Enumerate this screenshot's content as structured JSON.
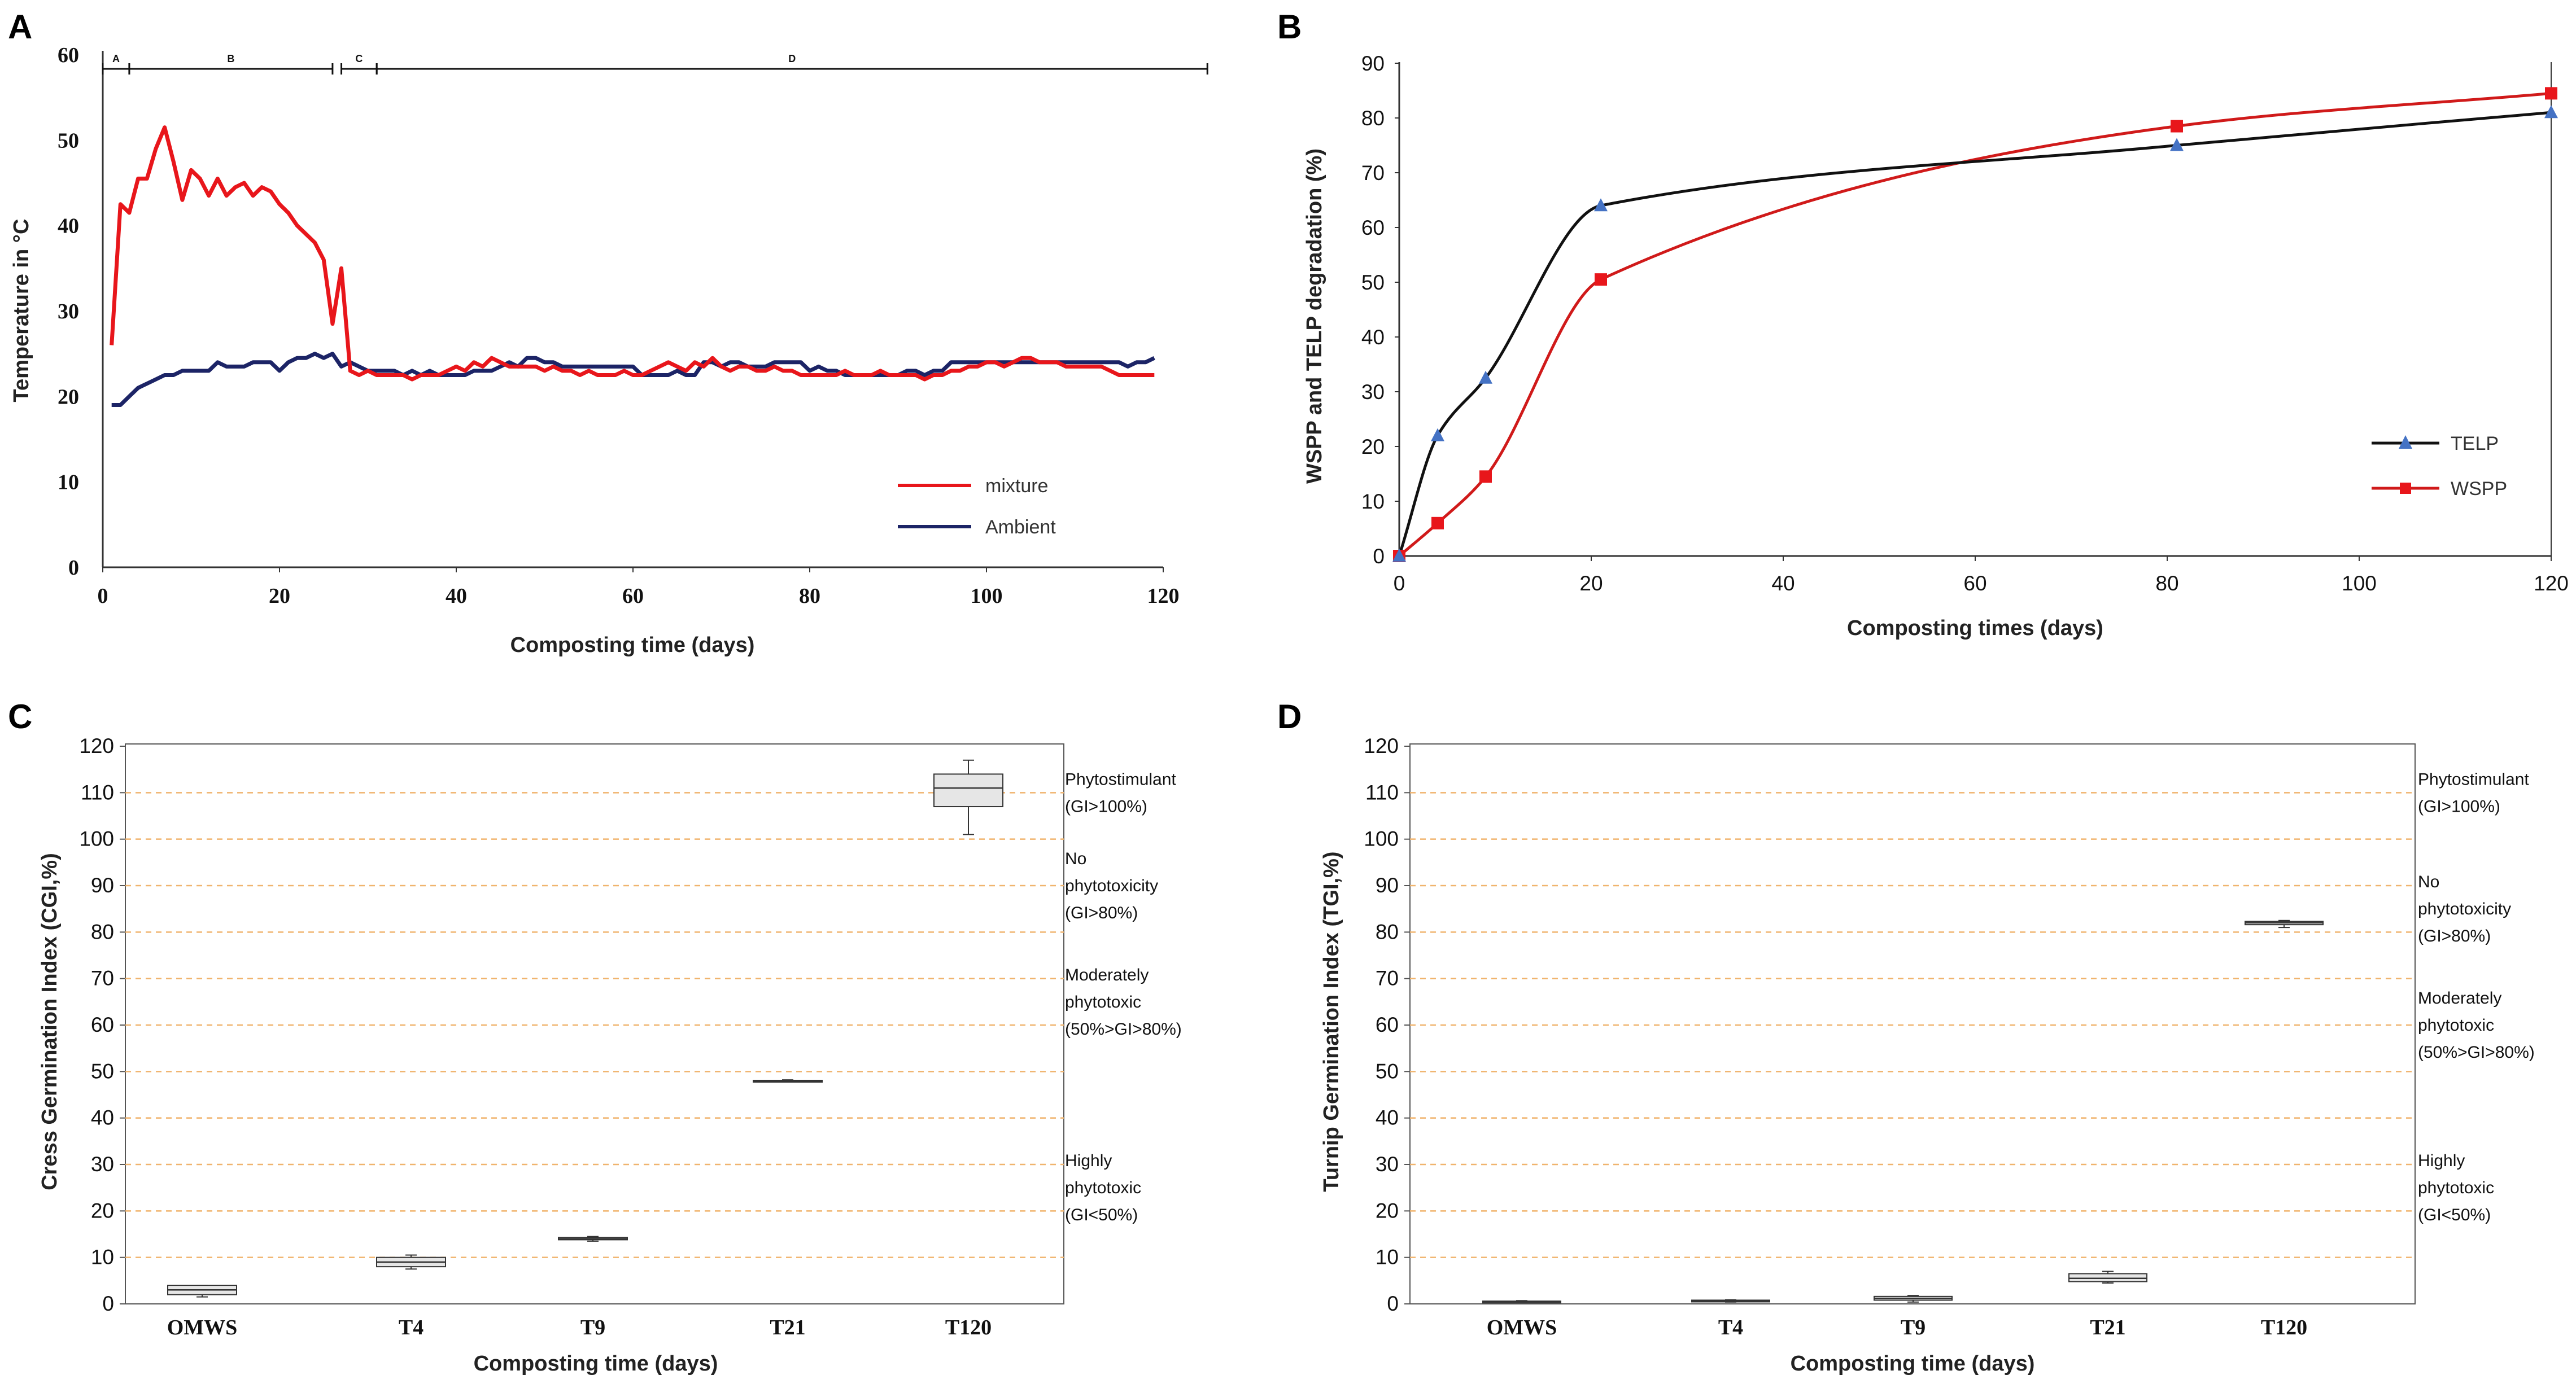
{
  "panels": {
    "A": "A",
    "B": "B",
    "C": "C",
    "D": "D"
  },
  "colors": {
    "mixture": "#e8161b",
    "ambient": "#1c2466",
    "telp": "#111111",
    "wspp": "#d01a1a",
    "telp_marker": "#4472c4",
    "grid": "#f0b46e",
    "box_fill": "#e6e6e6"
  },
  "chart_data": [
    {
      "id": "A",
      "type": "line",
      "xlabel": "Composting time (days)",
      "ylabel": "Temperature in °C",
      "xlim": [
        0,
        120
      ],
      "ylim": [
        0,
        60
      ],
      "xticks": [
        0,
        20,
        40,
        60,
        80,
        100,
        120
      ],
      "yticks": [
        0,
        10,
        20,
        30,
        40,
        50,
        60
      ],
      "phases": [
        {
          "label": "A",
          "start": 0,
          "end": 3
        },
        {
          "label": "B",
          "start": 3,
          "end": 26
        },
        {
          "label": "C",
          "start": 27,
          "end": 31
        },
        {
          "label": "D",
          "start": 31,
          "end": 125
        }
      ],
      "series": [
        {
          "name": "mixture",
          "color": "#e8161b",
          "x": [
            1,
            2,
            3,
            4,
            5,
            6,
            7,
            8,
            9,
            10,
            11,
            12,
            13,
            14,
            15,
            16,
            17,
            18,
            19,
            20,
            21,
            22,
            23,
            24,
            25,
            26,
            27,
            28,
            29,
            30,
            31,
            32,
            33,
            34,
            35,
            36,
            37,
            38,
            39,
            40,
            41,
            42,
            43,
            44,
            45,
            46,
            47,
            48,
            49,
            50,
            51,
            52,
            53,
            54,
            55,
            56,
            57,
            58,
            59,
            60,
            61,
            62,
            63,
            64,
            65,
            66,
            67,
            68,
            69,
            70,
            71,
            72,
            73,
            74,
            75,
            76,
            77,
            78,
            79,
            80,
            81,
            82,
            83,
            84,
            85,
            86,
            87,
            88,
            89,
            90,
            91,
            92,
            93,
            94,
            95,
            96,
            97,
            98,
            99,
            100,
            101,
            102,
            103,
            104,
            105,
            106,
            107,
            108,
            109,
            110,
            111,
            112,
            113,
            114,
            115,
            116,
            117,
            118,
            119
          ],
          "y": [
            26.0,
            42.5,
            41.5,
            45.5,
            45.5,
            49.0,
            51.5,
            47.5,
            43.0,
            46.5,
            45.5,
            43.5,
            45.5,
            43.5,
            44.5,
            45.0,
            43.5,
            44.5,
            44.0,
            42.5,
            41.5,
            40.0,
            39.0,
            38.0,
            36.0,
            28.5,
            35.0,
            23.0,
            22.5,
            23.0,
            22.5,
            22.5,
            22.5,
            22.5,
            22.0,
            22.5,
            22.5,
            22.5,
            23.0,
            23.5,
            23.0,
            24.0,
            23.5,
            24.5,
            24.0,
            23.5,
            23.5,
            23.5,
            23.5,
            23.0,
            23.5,
            23.0,
            23.0,
            22.5,
            23.0,
            22.5,
            22.5,
            22.5,
            23.0,
            22.5,
            22.5,
            23.0,
            23.5,
            24.0,
            23.5,
            23.0,
            24.0,
            23.5,
            24.5,
            23.5,
            23.0,
            23.5,
            23.5,
            23.0,
            23.0,
            23.5,
            23.0,
            23.0,
            22.5,
            22.5,
            22.5,
            22.5,
            22.5,
            23.0,
            22.5,
            22.5,
            22.5,
            23.0,
            22.5,
            22.5,
            22.5,
            22.5,
            22.0,
            22.5,
            22.5,
            23.0,
            23.0,
            23.5,
            23.5,
            24.0,
            24.0,
            23.5,
            24.0,
            24.5,
            24.5,
            24.0,
            24.0,
            24.0,
            23.5,
            23.5,
            23.5,
            23.5,
            23.5,
            23.0,
            22.5,
            22.5,
            22.5,
            22.5,
            22.5
          ]
        },
        {
          "name": "Ambient",
          "color": "#1c2466",
          "x": [
            1,
            2,
            3,
            4,
            5,
            6,
            7,
            8,
            9,
            10,
            11,
            12,
            13,
            14,
            15,
            16,
            17,
            18,
            19,
            20,
            21,
            22,
            23,
            24,
            25,
            26,
            27,
            28,
            29,
            30,
            31,
            32,
            33,
            34,
            35,
            36,
            37,
            38,
            39,
            40,
            41,
            42,
            43,
            44,
            45,
            46,
            47,
            48,
            49,
            50,
            51,
            52,
            53,
            54,
            55,
            56,
            57,
            58,
            59,
            60,
            61,
            62,
            63,
            64,
            65,
            66,
            67,
            68,
            69,
            70,
            71,
            72,
            73,
            74,
            75,
            76,
            77,
            78,
            79,
            80,
            81,
            82,
            83,
            84,
            85,
            86,
            87,
            88,
            89,
            90,
            91,
            92,
            93,
            94,
            95,
            96,
            97,
            98,
            99,
            100,
            101,
            102,
            103,
            104,
            105,
            106,
            107,
            108,
            109,
            110,
            111,
            112,
            113,
            114,
            115,
            116,
            117,
            118,
            119
          ],
          "y": [
            19.0,
            19.0,
            20.0,
            21.0,
            21.5,
            22.0,
            22.5,
            22.5,
            23.0,
            23.0,
            23.0,
            23.0,
            24.0,
            23.5,
            23.5,
            23.5,
            24.0,
            24.0,
            24.0,
            23.0,
            24.0,
            24.5,
            24.5,
            25.0,
            24.5,
            25.0,
            23.5,
            24.0,
            23.5,
            23.0,
            23.0,
            23.0,
            23.0,
            22.5,
            23.0,
            22.5,
            23.0,
            22.5,
            22.5,
            22.5,
            22.5,
            23.0,
            23.0,
            23.0,
            23.5,
            24.0,
            23.5,
            24.5,
            24.5,
            24.0,
            24.0,
            23.5,
            23.5,
            23.5,
            23.5,
            23.5,
            23.5,
            23.5,
            23.5,
            23.5,
            22.5,
            22.5,
            22.5,
            22.5,
            23.0,
            22.5,
            22.5,
            24.0,
            24.0,
            23.5,
            24.0,
            24.0,
            23.5,
            23.5,
            23.5,
            24.0,
            24.0,
            24.0,
            24.0,
            23.0,
            23.5,
            23.0,
            23.0,
            22.5,
            22.5,
            22.5,
            22.5,
            22.5,
            22.5,
            22.5,
            23.0,
            23.0,
            22.5,
            23.0,
            23.0,
            24.0,
            24.0,
            24.0,
            24.0,
            24.0,
            24.0,
            24.0,
            24.0,
            24.0,
            24.0,
            24.0,
            24.0,
            24.0,
            24.0,
            24.0,
            24.0,
            24.0,
            24.0,
            24.0,
            24.0,
            23.5,
            24.0,
            24.0,
            24.5
          ]
        }
      ],
      "legend": [
        "mixture",
        "Ambient"
      ]
    },
    {
      "id": "B",
      "type": "line",
      "xlabel": "Composting times (days)",
      "ylabel": "WSPP and TELP degradation (%)",
      "xlim": [
        0,
        120
      ],
      "ylim": [
        0,
        90
      ],
      "xticks": [
        0,
        20,
        40,
        60,
        80,
        100,
        120
      ],
      "yticks": [
        0,
        10,
        20,
        30,
        40,
        50,
        60,
        70,
        80,
        90
      ],
      "series": [
        {
          "name": "TELP",
          "color": "#111111",
          "marker": "triangle",
          "marker_color": "#4472c4",
          "x": [
            0,
            4,
            9,
            21,
            81,
            120
          ],
          "y": [
            0,
            22,
            32.5,
            64,
            75,
            81
          ]
        },
        {
          "name": "WSPP",
          "color": "#d01a1a",
          "marker": "square",
          "marker_color": "#e8161b",
          "x": [
            0,
            4,
            9,
            21,
            81,
            120
          ],
          "y": [
            0,
            6,
            14.5,
            50.5,
            78.5,
            84.5
          ]
        }
      ],
      "legend": [
        "TELP",
        "WSPP"
      ]
    },
    {
      "id": "C",
      "type": "box",
      "xlabel": "Composting time (days)",
      "ylabel": "Cress Germination Index (CGI,%)",
      "ylim": [
        0,
        120
      ],
      "yticks": [
        0,
        10,
        20,
        30,
        40,
        50,
        60,
        70,
        80,
        90,
        100,
        110,
        120
      ],
      "categories": [
        "OMWS",
        "T4",
        "T9",
        "T21",
        "T120"
      ],
      "boxes": [
        {
          "label": "OMWS",
          "min": 1.5,
          "q1": 2.0,
          "median": 3.0,
          "q3": 4.0,
          "max": 4.0
        },
        {
          "label": "T4",
          "min": 7.5,
          "q1": 8.0,
          "median": 9.0,
          "q3": 10.0,
          "max": 10.5
        },
        {
          "label": "T9",
          "min": 13.5,
          "q1": 13.8,
          "median": 14.0,
          "q3": 14.3,
          "max": 14.5
        },
        {
          "label": "T21",
          "min": 47.8,
          "q1": 47.9,
          "median": 48.0,
          "q3": 48.1,
          "max": 48.2
        },
        {
          "label": "T120",
          "min": 101.0,
          "q1": 107.0,
          "median": 111.0,
          "q3": 114.0,
          "max": 117.0
        }
      ],
      "annotations": [
        {
          "lines": [
            "Phytostimulant",
            "(GI>100%)"
          ],
          "y": 110
        },
        {
          "lines": [
            "No",
            "phytotoxicity",
            "(GI>80%)"
          ],
          "y": 90
        },
        {
          "lines": [
            "Moderately",
            "phytotoxic",
            "(50%>GI>80%)"
          ],
          "y": 65
        },
        {
          "lines": [
            "Highly",
            "phytotoxic",
            "(GI<50%)"
          ],
          "y": 25
        }
      ]
    },
    {
      "id": "D",
      "type": "box",
      "xlabel": "Composting time (days)",
      "ylabel": "Turnip Germination Index (TGI,%)",
      "ylim": [
        0,
        120
      ],
      "yticks": [
        0,
        10,
        20,
        30,
        40,
        50,
        60,
        70,
        80,
        90,
        100,
        110,
        120
      ],
      "categories": [
        "OMWS",
        "T4",
        "T9",
        "T21",
        "T120"
      ],
      "boxes": [
        {
          "label": "OMWS",
          "min": 0.3,
          "q1": 0.4,
          "median": 0.5,
          "q3": 0.6,
          "max": 0.7
        },
        {
          "label": "T4",
          "min": 0.4,
          "q1": 0.5,
          "median": 0.6,
          "q3": 0.8,
          "max": 0.9
        },
        {
          "label": "T9",
          "min": 0.4,
          "q1": 0.8,
          "median": 1.2,
          "q3": 1.6,
          "max": 1.8
        },
        {
          "label": "T21",
          "min": 4.5,
          "q1": 4.8,
          "median": 5.5,
          "q3": 6.5,
          "max": 7.0
        },
        {
          "label": "T120",
          "min": 81.0,
          "q1": 81.6,
          "median": 82.0,
          "q3": 82.3,
          "max": 82.5
        }
      ],
      "annotations": [
        {
          "lines": [
            "Phytostimulant",
            "(GI>100%)"
          ],
          "y": 110
        },
        {
          "lines": [
            "No",
            "phytotoxicity",
            "(GI>80%)"
          ],
          "y": 85
        },
        {
          "lines": [
            "Moderately",
            "phytotoxic",
            "(50%>GI>80%)"
          ],
          "y": 60
        },
        {
          "lines": [
            "Highly",
            "phytotoxic",
            "(GI<50%)"
          ],
          "y": 25
        }
      ]
    }
  ]
}
